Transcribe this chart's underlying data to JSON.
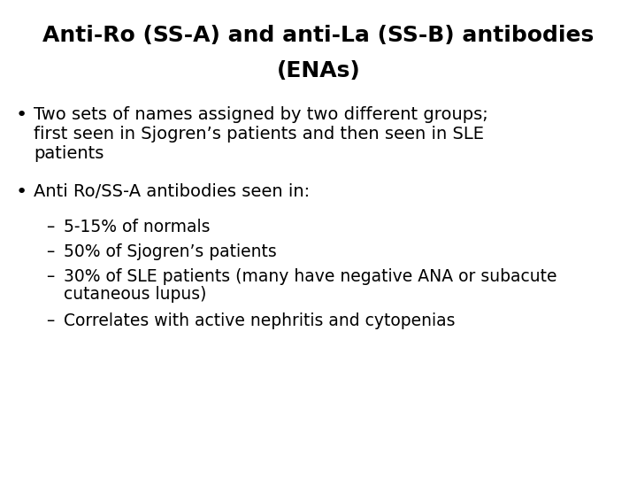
{
  "title_line1": "Anti-Ro (SS-A) and anti-La (SS-B) antibodies",
  "title_line2": "(ENAs)",
  "title_fontsize": 18,
  "title_fontweight": "bold",
  "background_color": "#ffffff",
  "text_color": "#000000",
  "bullet1_line1": "Two sets of names assigned by two different groups;",
  "bullet1_line2": "first seen in Sjogren’s patients and then seen in SLE",
  "bullet1_line3": "patients",
  "bullet2": "Anti Ro/SS-A antibodies seen in:",
  "sub1": "5-15% of normals",
  "sub2": "50% of Sjogren’s patients",
  "sub3": "30% of SLE patients (many have negative ANA or subacute",
  "sub3b": "cutaneous lupus)",
  "sub4": "Correlates with active nephritis and cytopenias",
  "body_fontsize": 14,
  "sub_fontsize": 13.5
}
